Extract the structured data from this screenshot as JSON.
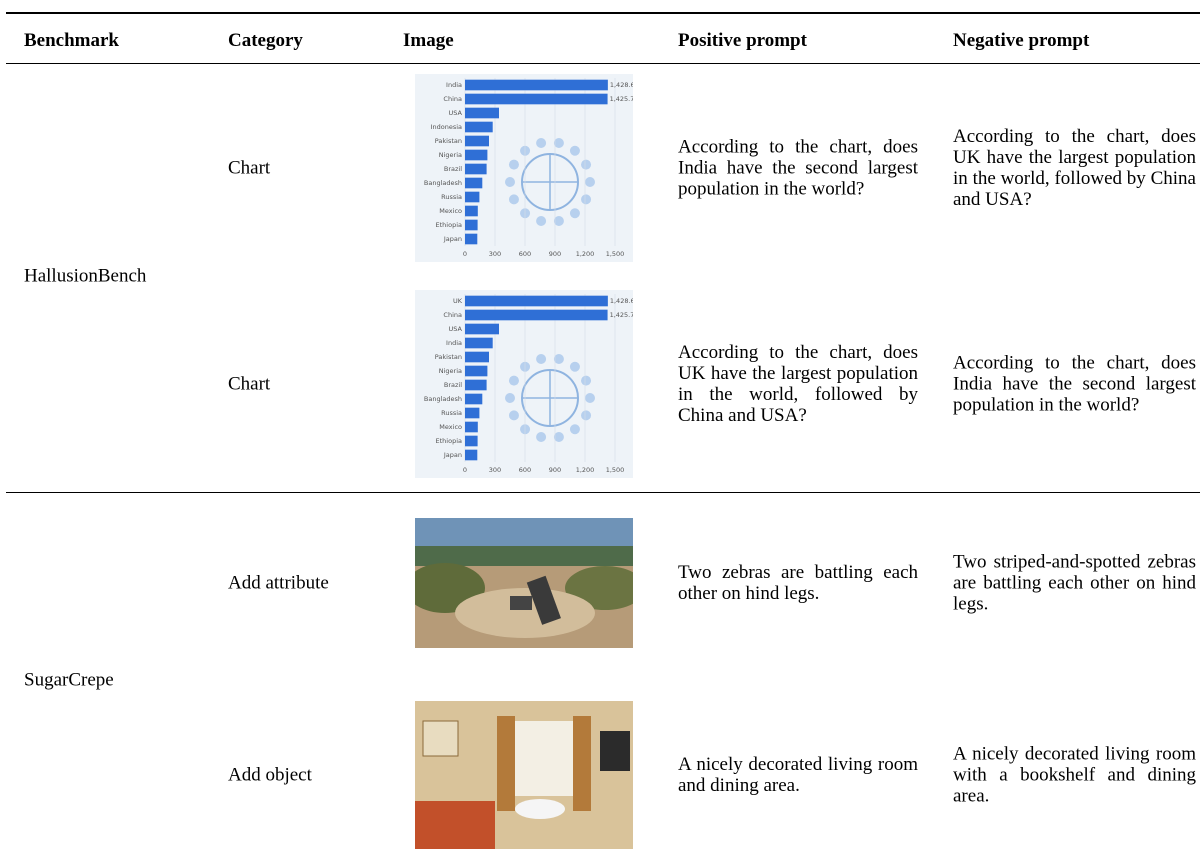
{
  "table": {
    "header": [
      "Benchmark",
      "Category",
      "Image",
      "Positive prompt",
      "Negative prompt"
    ],
    "groups": [
      {
        "benchmark": "HallusionBench",
        "rows": [
          {
            "category": "Chart",
            "image": {
              "type": "bar",
              "categories": [
                "India",
                "China",
                "USA",
                "Indonesia",
                "Pakistan",
                "Nigeria",
                "Brazil",
                "Bangladesh",
                "Russia",
                "Mexico",
                "Ethiopia",
                "Japan"
              ],
              "values": [
                1428.6,
                1425.7,
                340,
                277,
                240,
                224,
                216,
                173,
                144,
                128,
                126,
                123
              ],
              "value_labels": [
                "1,428.6",
                "1,425.7",
                null,
                null,
                null,
                null,
                null,
                null,
                null,
                null,
                null,
                null
              ],
              "color": "#2f6fd6",
              "xlim": [
                0,
                1550
              ],
              "xticks": [
                0,
                300,
                600,
                900,
                {
                  "value": 1200,
                  "label": "1,200"
                },
                {
                  "value": 1500,
                  "label": "1,500"
                }
              ]
            },
            "positive": "According to the chart, does India have the second largest population in the world?",
            "negative": "According to the chart, does UK have the largest population in the world, followed by China and USA?"
          },
          {
            "category": "Chart",
            "image": {
              "type": "bar",
              "categories": [
                "UK",
                "China",
                "USA",
                "India",
                "Pakistan",
                "Nigeria",
                "Brazil",
                "Bangladesh",
                "Russia",
                "Mexico",
                "Ethiopia",
                "Japan"
              ],
              "values": [
                1428.6,
                1425.7,
                340,
                277,
                240,
                224,
                216,
                173,
                144,
                128,
                126,
                123
              ],
              "value_labels": [
                "1,428.6",
                "1,425.7",
                null,
                null,
                null,
                null,
                null,
                null,
                null,
                null,
                null,
                null
              ],
              "color": "#2f6fd6",
              "xlim": [
                0,
                1550
              ],
              "xticks": [
                0,
                300,
                600,
                900,
                {
                  "value": 1200,
                  "label": "1,200"
                },
                {
                  "value": 1500,
                  "label": "1,500"
                }
              ]
            },
            "positive": "According to the chart, does UK have the largest population in the world, followed by China and USA?",
            "negative": "According to the chart, does India have the second largest population in the world?"
          }
        ]
      },
      {
        "benchmark": "SugarCrepe",
        "rows": [
          {
            "category": "Add attribute",
            "positive": "Two zebras are battling each other on hind legs.",
            "negative": "Two striped-and-spotted zebras are battling each other on hind legs."
          },
          {
            "category": "Add object",
            "positive": "A nicely decorated living room and dining area.",
            "negative": "A nicely decorated living room with a bookshelf and dining area."
          }
        ]
      }
    ]
  }
}
